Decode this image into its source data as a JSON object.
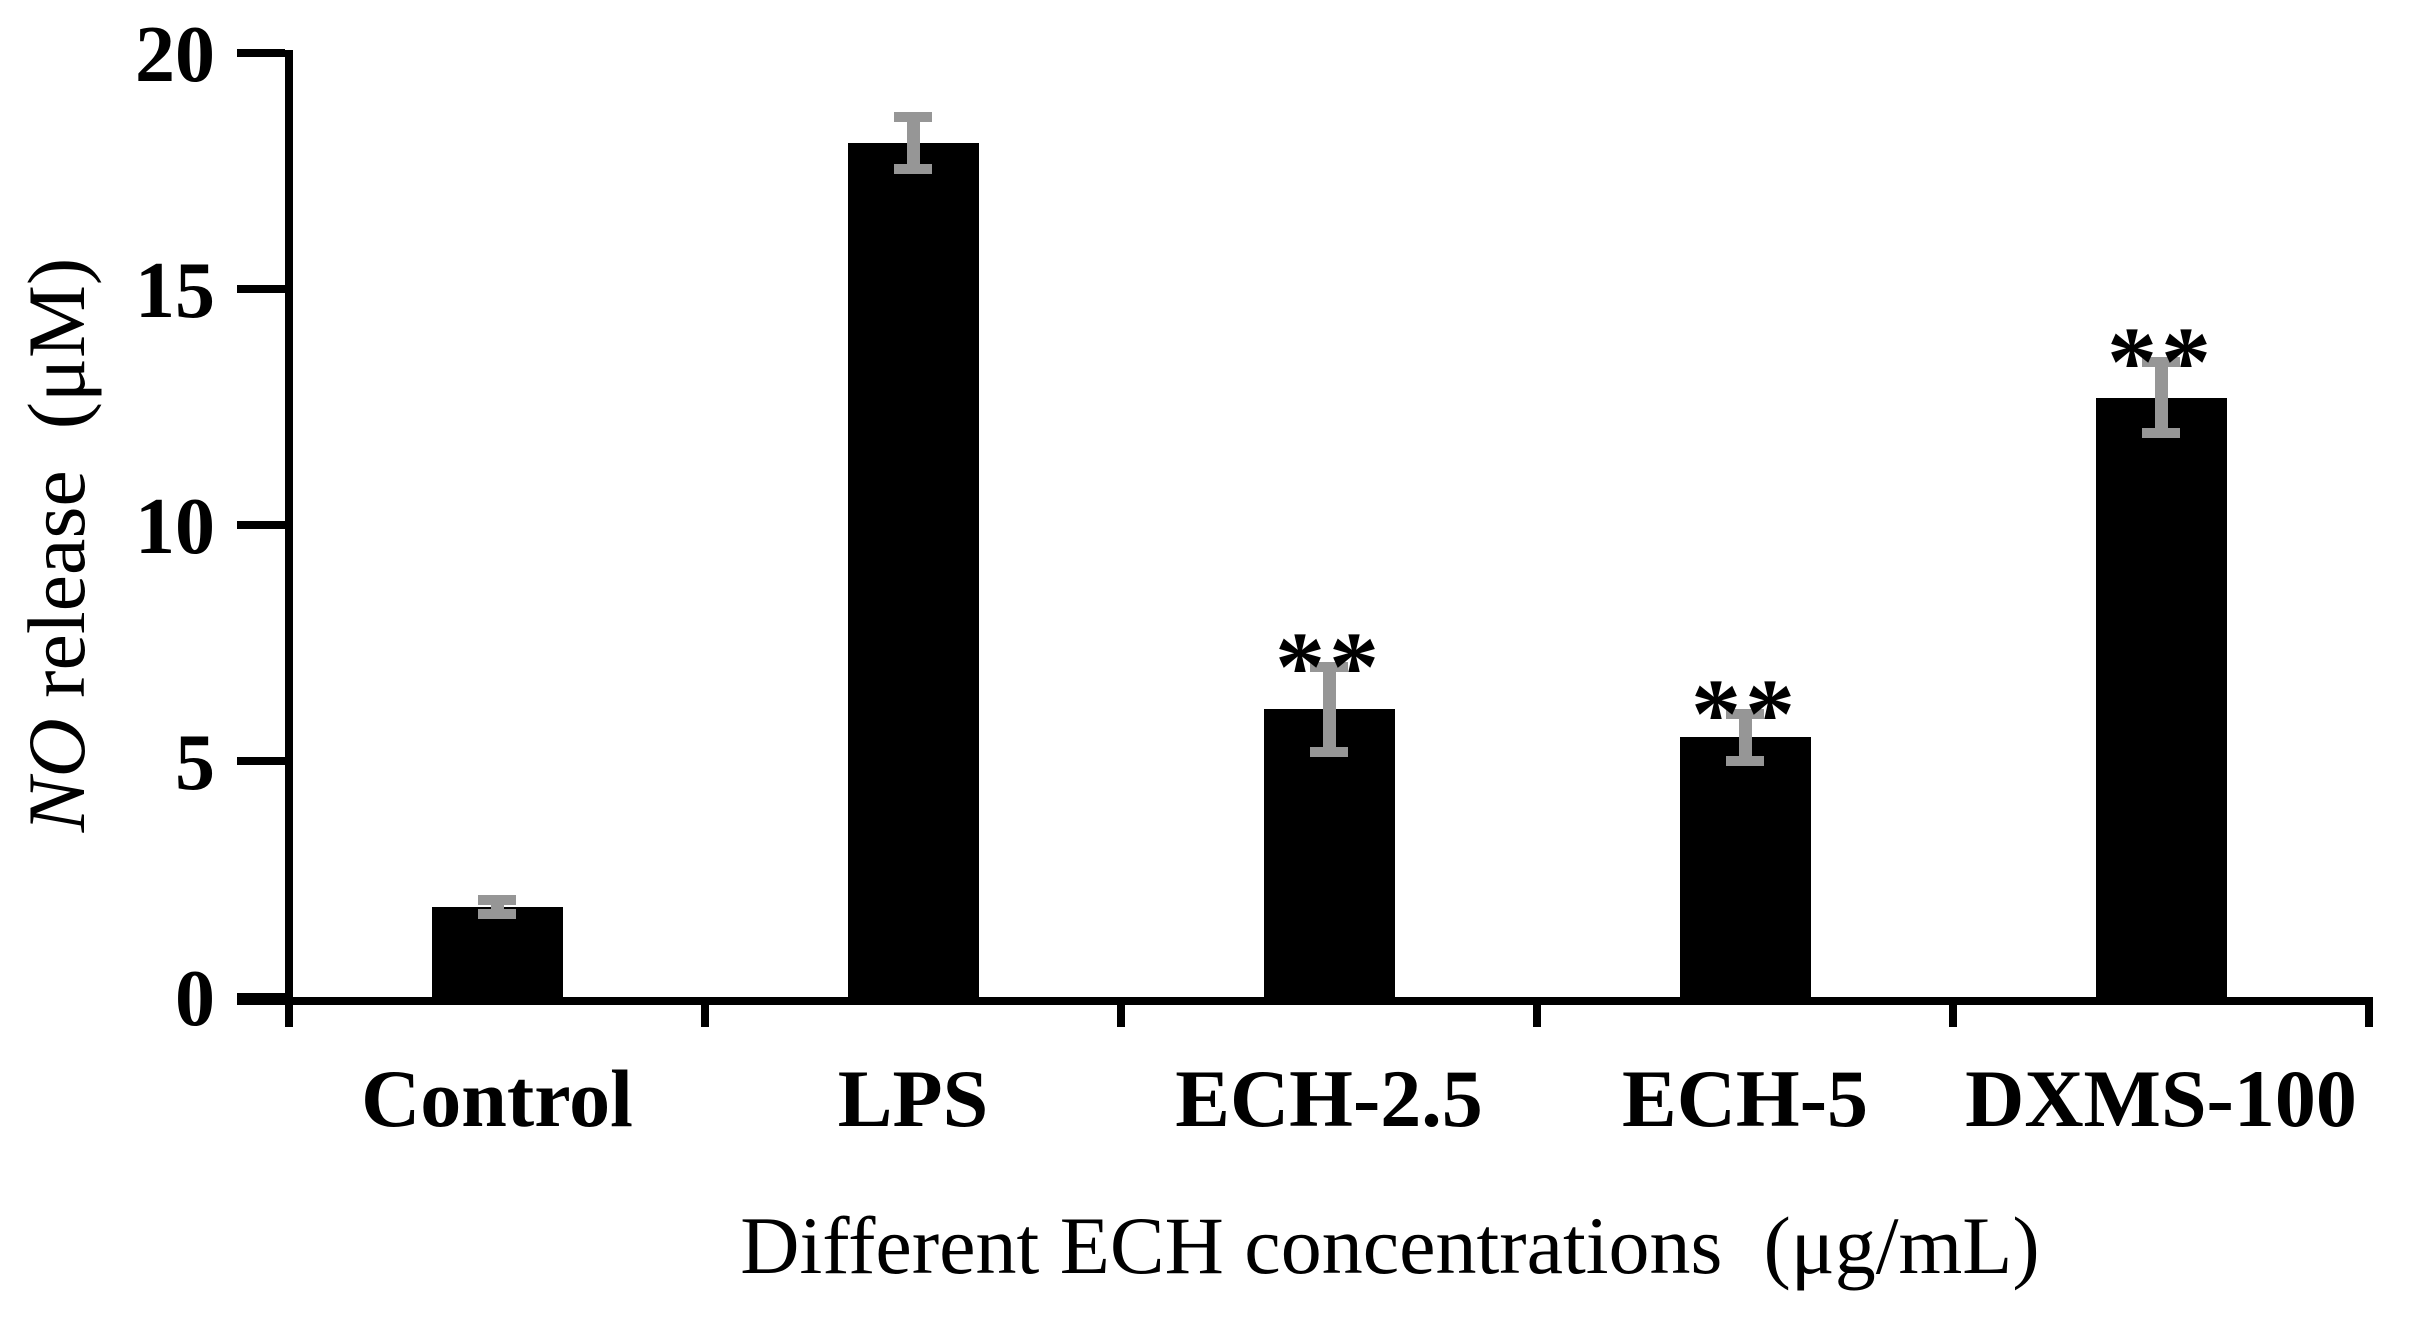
{
  "chart_data": {
    "type": "bar",
    "title": "",
    "categories": [
      "Control",
      "LPS",
      "ECH-2.5",
      "ECH-5",
      "DXMS-100"
    ],
    "values": [
      1.9,
      18.1,
      6.1,
      5.5,
      12.7
    ],
    "errors": [
      0.15,
      0.55,
      0.9,
      0.5,
      0.75
    ],
    "significance": [
      "",
      "",
      "**",
      "**",
      "**"
    ],
    "ylabel": "NO release  (μM)",
    "ylabel_italic_part": "NO",
    "ylabel_regular_part": " release  (μM)",
    "xlabel": "Different ECH concentrations  (μg/mL)",
    "yticks": [
      0,
      5,
      10,
      15,
      20
    ],
    "ylim": [
      0,
      20
    ],
    "grid": "off",
    "legend": "none",
    "bar_color": "#000000",
    "error_bar_color": "#969696",
    "axis_color": "#000000"
  }
}
